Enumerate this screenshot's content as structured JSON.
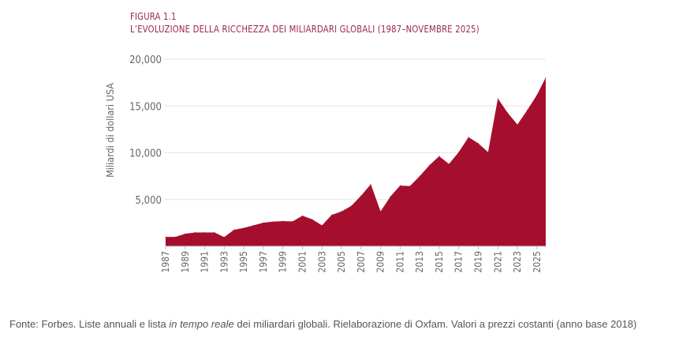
{
  "figure_label": "FIGURA 1.1",
  "chart_data": {
    "type": "area",
    "title": "L’EVOLUZIONE DELLA RICCHEZZA DEI MILIARDARI GLOBALI (1987–NOVEMBRE 2025)",
    "xlabel": "",
    "ylabel": "Miliardi di dollari USA",
    "ylim": [
      0,
      20000
    ],
    "yticks": [
      "5,000",
      "10,000",
      "15,000",
      "20,000"
    ],
    "ytick_values": [
      5000,
      10000,
      15000,
      20000
    ],
    "xticks": [
      "1987",
      "1989",
      "1991",
      "1993",
      "1995",
      "1997",
      "1999",
      "2001",
      "2003",
      "2005",
      "2007",
      "2009",
      "2011",
      "2013",
      "2015",
      "2017",
      "2019",
      "2021",
      "2023",
      "2025"
    ],
    "grid": true,
    "color": "#a50f2d",
    "x": [
      1987,
      1988,
      1989,
      1990,
      1991,
      1992,
      1993,
      1994,
      1995,
      1996,
      1997,
      1998,
      1999,
      2000,
      2001,
      2002,
      2003,
      2004,
      2005,
      2006,
      2007,
      2008,
      2009,
      2010,
      2011,
      2012,
      2013,
      2014,
      2015,
      2016,
      2017,
      2018,
      2019,
      2020,
      2021,
      2022,
      2023,
      2024,
      2025,
      2025.9
    ],
    "values": [
      1000,
      1000,
      1340,
      1480,
      1480,
      1480,
      980,
      1760,
      1960,
      2240,
      2520,
      2630,
      2690,
      2660,
      3270,
      2880,
      2240,
      3360,
      3720,
      4310,
      5400,
      6630,
      3720,
      5320,
      6490,
      6440,
      7500,
      8670,
      9630,
      8790,
      10070,
      11670,
      11000,
      10070,
      15810,
      14270,
      13010,
      14550,
      16170,
      18050
    ]
  },
  "footer": {
    "prefix": "Fonte: Forbes. Liste annuali e lista ",
    "italic": "in tempo reale",
    "suffix": " dei miliardari globali. Rielaborazione di Oxfam. Valori a prezzi costanti (anno base 2018)"
  }
}
